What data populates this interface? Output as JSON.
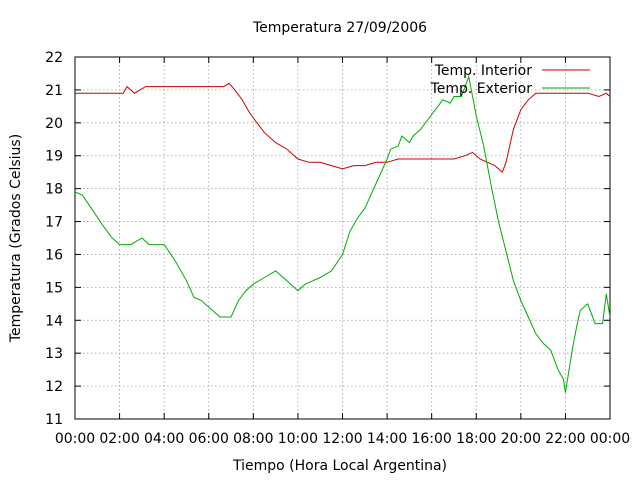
{
  "chart_data": {
    "type": "line",
    "title": "Temperatura 27/09/2006",
    "xlabel": "Tiempo (Hora Local Argentina)",
    "ylabel": "Temperatura (Grados Celsius)",
    "xlim": [
      "00:00",
      "24:00"
    ],
    "ylim": [
      11,
      22
    ],
    "x_ticks": [
      "00:00",
      "02:00",
      "04:00",
      "06:00",
      "08:00",
      "10:00",
      "12:00",
      "14:00",
      "16:00",
      "18:00",
      "20:00",
      "22:00",
      "00:00"
    ],
    "y_ticks": [
      "11",
      "12",
      "13",
      "14",
      "15",
      "16",
      "17",
      "18",
      "19",
      "20",
      "21",
      "22"
    ],
    "grid": true,
    "legend_position": "top-right",
    "series": [
      {
        "name": "Temp. Interior",
        "color": "#cc0000",
        "x": [
          "00:00",
          "01:00",
          "02:10",
          "02:20",
          "02:40",
          "03:10",
          "04:00",
          "05:00",
          "06:00",
          "06:40",
          "06:55",
          "07:10",
          "07:30",
          "07:50",
          "08:10",
          "08:30",
          "09:00",
          "09:30",
          "10:00",
          "10:30",
          "11:00",
          "11:30",
          "12:00",
          "12:30",
          "13:00",
          "13:30",
          "14:00",
          "14:30",
          "15:00",
          "15:30",
          "16:00",
          "16:30",
          "17:00",
          "17:30",
          "17:50",
          "18:10",
          "18:30",
          "18:50",
          "19:10",
          "19:20",
          "19:40",
          "20:00",
          "20:20",
          "20:40",
          "21:00",
          "22:00",
          "23:00",
          "23:30",
          "23:50",
          "24:00"
        ],
        "values": [
          20.9,
          20.9,
          20.9,
          21.1,
          20.9,
          21.1,
          21.1,
          21.1,
          21.1,
          21.1,
          21.2,
          21.0,
          20.7,
          20.3,
          20.0,
          19.7,
          19.4,
          19.2,
          18.9,
          18.8,
          18.8,
          18.7,
          18.6,
          18.7,
          18.7,
          18.8,
          18.8,
          18.9,
          18.9,
          18.9,
          18.9,
          18.9,
          18.9,
          19.0,
          19.1,
          18.9,
          18.8,
          18.7,
          18.5,
          18.8,
          19.8,
          20.4,
          20.7,
          20.9,
          20.9,
          20.9,
          20.9,
          20.8,
          20.9,
          20.8
        ]
      },
      {
        "name": "Temp. Exterior",
        "color": "#00aa00",
        "x": [
          "00:00",
          "00:20",
          "00:50",
          "01:20",
          "01:40",
          "02:00",
          "02:30",
          "03:00",
          "03:20",
          "04:00",
          "04:30",
          "05:00",
          "05:20",
          "05:40",
          "06:00",
          "06:30",
          "07:00",
          "07:20",
          "07:40",
          "08:00",
          "08:30",
          "09:00",
          "09:30",
          "10:00",
          "10:20",
          "10:40",
          "11:00",
          "11:30",
          "12:00",
          "12:20",
          "12:40",
          "13:00",
          "13:20",
          "13:40",
          "14:00",
          "14:10",
          "14:30",
          "14:40",
          "15:00",
          "15:10",
          "15:30",
          "15:50",
          "16:10",
          "16:30",
          "16:50",
          "17:00",
          "17:20",
          "17:40",
          "18:00",
          "18:20",
          "18:40",
          "19:00",
          "19:20",
          "19:40",
          "20:00",
          "20:20",
          "20:40",
          "21:00",
          "21:20",
          "21:40",
          "21:55",
          "22:00",
          "22:20",
          "22:30",
          "22:40",
          "23:00",
          "23:20",
          "23:40",
          "23:50",
          "24:00"
        ],
        "values": [
          17.9,
          17.8,
          17.3,
          16.8,
          16.5,
          16.3,
          16.3,
          16.5,
          16.3,
          16.3,
          15.8,
          15.2,
          14.7,
          14.6,
          14.4,
          14.1,
          14.1,
          14.6,
          14.9,
          15.1,
          15.3,
          15.5,
          15.2,
          14.9,
          15.1,
          15.2,
          15.3,
          15.5,
          16.0,
          16.7,
          17.1,
          17.4,
          17.9,
          18.4,
          18.9,
          19.2,
          19.3,
          19.6,
          19.4,
          19.6,
          19.8,
          20.1,
          20.4,
          20.7,
          20.6,
          20.8,
          20.8,
          21.4,
          20.2,
          19.3,
          18.1,
          17.0,
          16.1,
          15.2,
          14.6,
          14.1,
          13.6,
          13.3,
          13.1,
          12.5,
          12.2,
          11.8,
          13.2,
          13.8,
          14.3,
          14.5,
          13.9,
          13.9,
          14.8,
          14.1
        ]
      }
    ]
  }
}
